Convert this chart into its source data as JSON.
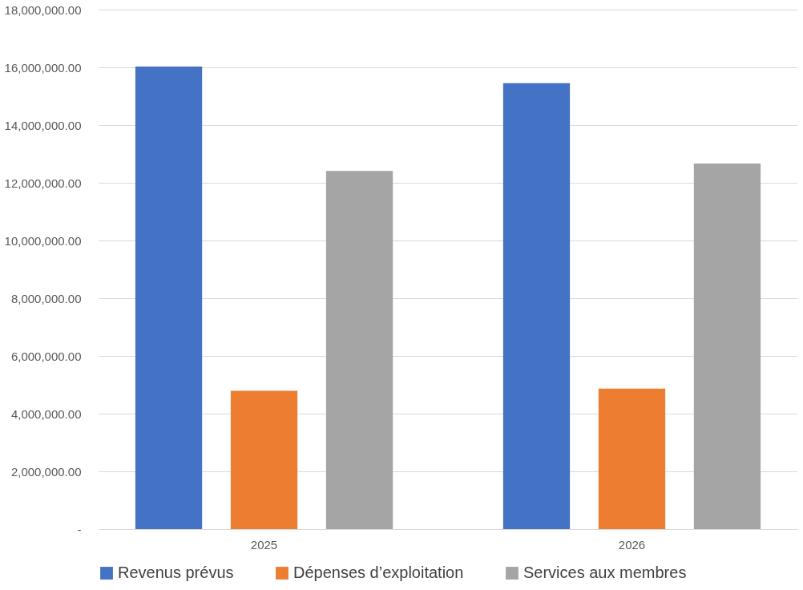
{
  "chart_data": {
    "type": "bar",
    "categories": [
      "2025",
      "2026"
    ],
    "series": [
      {
        "name": "Revenus prévus",
        "color": "#4472c4",
        "values": [
          16030000,
          15450000
        ]
      },
      {
        "name": "Dépenses d’exploitation",
        "color": "#ed7d31",
        "values": [
          4790000,
          4870000
        ]
      },
      {
        "name": "Services aux membres",
        "color": "#a5a5a5",
        "values": [
          12410000,
          12670000
        ]
      }
    ],
    "ylim": [
      0,
      18000000
    ],
    "yticks": [
      {
        "value": 0,
        "label": "-"
      },
      {
        "value": 2000000,
        "label": "2,000,000.00"
      },
      {
        "value": 4000000,
        "label": "4,000,000.00"
      },
      {
        "value": 6000000,
        "label": "6,000,000.00"
      },
      {
        "value": 8000000,
        "label": "8,000,000.00"
      },
      {
        "value": 10000000,
        "label": "10,000,000.00"
      },
      {
        "value": 12000000,
        "label": "12,000,000.00"
      },
      {
        "value": 14000000,
        "label": "14,000,000.00"
      },
      {
        "value": 16000000,
        "label": "16,000,000.00"
      },
      {
        "value": 18000000,
        "label": "18,000,000.00"
      }
    ],
    "grid": "y",
    "legend": "bottom"
  }
}
